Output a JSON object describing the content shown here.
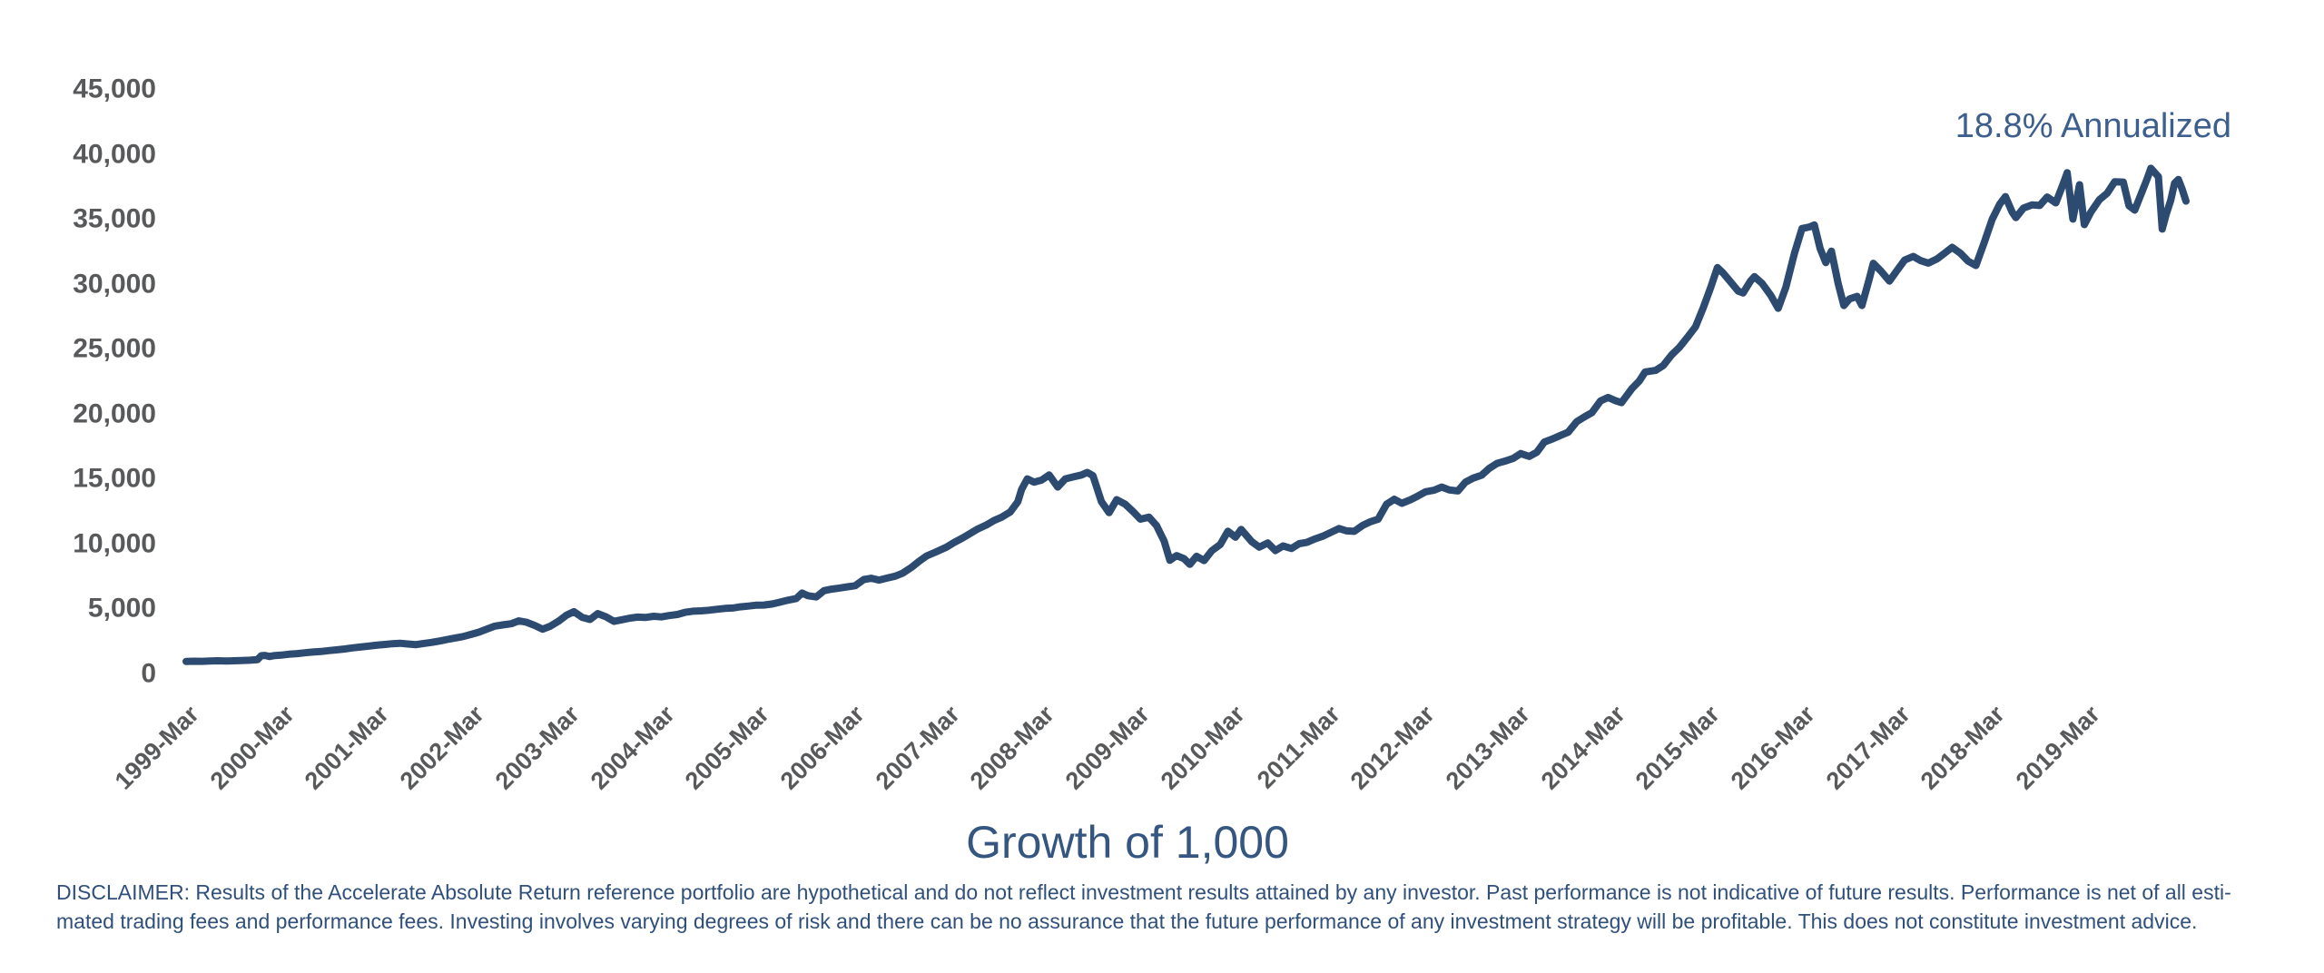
{
  "figure": {
    "title": "Growth of 1,000",
    "annotation": "18.8% Annualized",
    "disclaimer_lines": [
      "DISCLAIMER: Results of the Accelerate Absolute Return reference portfolio are hypothetical and do not reflect investment results attained by any investor. Past performance is not indicative of future results. Performance is net of all esti-",
      "mated trading fees and performance fees. Investing involves varying degrees of risk and there can be no assurance that the future performance of any investment strategy will be profitable. This does not constitute investment advice."
    ],
    "colors": {
      "line": "#2d4a70",
      "annotation_text": "#3d5f8d",
      "title_text": "#355680",
      "disclaimer_text": "#30507c",
      "axis_labels": "#58595b",
      "background": "#ffffff"
    }
  },
  "chart_data": {
    "type": "line",
    "title": "Growth of 1,000",
    "series_name": "Accelerate Absolute Return reference portfolio - growth of 1,000",
    "annotation": "18.8% Annualized",
    "grid": false,
    "legend": "none",
    "xlabel": "",
    "ylabel": "",
    "x_unit": "decimal_year",
    "ylim": [
      0,
      45000
    ],
    "xlim": [
      1999.25,
      2020.29
    ],
    "y_ticks": [
      {
        "label": "0",
        "v": 0
      },
      {
        "label": "5,000",
        "v": 5000
      },
      {
        "label": "10,000",
        "v": 10000
      },
      {
        "label": "15,000",
        "v": 15000
      },
      {
        "label": "20,000",
        "v": 20000
      },
      {
        "label": "25,000",
        "v": 25000
      },
      {
        "label": "30,000",
        "v": 30000
      },
      {
        "label": "35,000",
        "v": 35000
      },
      {
        "label": "40,000",
        "v": 40000
      },
      {
        "label": "45,000",
        "v": 45000
      }
    ],
    "x_ticks": [
      {
        "label": "1999-Mar",
        "t": 1999.25
      },
      {
        "label": "2000-Mar",
        "t": 2000.25
      },
      {
        "label": "2001-Mar",
        "t": 2001.25
      },
      {
        "label": "2002-Mar",
        "t": 2002.25
      },
      {
        "label": "2003-Mar",
        "t": 2003.25
      },
      {
        "label": "2004-Mar",
        "t": 2004.25
      },
      {
        "label": "2005-Mar",
        "t": 2005.25
      },
      {
        "label": "2006-Mar",
        "t": 2006.25
      },
      {
        "label": "2007-Mar",
        "t": 2007.25
      },
      {
        "label": "2008-Mar",
        "t": 2008.25
      },
      {
        "label": "2009-Mar",
        "t": 2009.25
      },
      {
        "label": "2010-Mar",
        "t": 2010.25
      },
      {
        "label": "2011-Mar",
        "t": 2011.25
      },
      {
        "label": "2012-Mar",
        "t": 2012.25
      },
      {
        "label": "2013-Mar",
        "t": 2013.25
      },
      {
        "label": "2014-Mar",
        "t": 2014.25
      },
      {
        "label": "2015-Mar",
        "t": 2015.25
      },
      {
        "label": "2016-Mar",
        "t": 2016.25
      },
      {
        "label": "2017-Mar",
        "t": 2017.25
      },
      {
        "label": "2018-Mar",
        "t": 2018.25
      },
      {
        "label": "2019-Mar",
        "t": 2019.25
      }
    ],
    "points": [
      [
        1999.25,
        1000
      ],
      [
        1999.33,
        1015
      ],
      [
        1999.42,
        1005
      ],
      [
        1999.5,
        1030
      ],
      [
        1999.58,
        1045
      ],
      [
        1999.67,
        1025
      ],
      [
        1999.75,
        1050
      ],
      [
        1999.83,
        1060
      ],
      [
        1999.92,
        1090
      ],
      [
        2000.0,
        1130
      ],
      [
        2000.04,
        1430
      ],
      [
        2000.08,
        1460
      ],
      [
        2000.13,
        1380
      ],
      [
        2000.17,
        1440
      ],
      [
        2000.25,
        1480
      ],
      [
        2000.33,
        1550
      ],
      [
        2000.42,
        1600
      ],
      [
        2000.5,
        1660
      ],
      [
        2000.58,
        1720
      ],
      [
        2000.67,
        1760
      ],
      [
        2000.75,
        1830
      ],
      [
        2000.83,
        1890
      ],
      [
        2000.92,
        1960
      ],
      [
        2001.0,
        2040
      ],
      [
        2001.08,
        2100
      ],
      [
        2001.17,
        2170
      ],
      [
        2001.25,
        2240
      ],
      [
        2001.33,
        2300
      ],
      [
        2001.42,
        2360
      ],
      [
        2001.5,
        2400
      ],
      [
        2001.58,
        2340
      ],
      [
        2001.67,
        2290
      ],
      [
        2001.75,
        2380
      ],
      [
        2001.83,
        2460
      ],
      [
        2001.92,
        2570
      ],
      [
        2002.0,
        2690
      ],
      [
        2002.08,
        2800
      ],
      [
        2002.17,
        2920
      ],
      [
        2002.25,
        3080
      ],
      [
        2002.33,
        3250
      ],
      [
        2002.42,
        3500
      ],
      [
        2002.5,
        3720
      ],
      [
        2002.58,
        3810
      ],
      [
        2002.67,
        3900
      ],
      [
        2002.75,
        4120
      ],
      [
        2002.83,
        4020
      ],
      [
        2002.92,
        3760
      ],
      [
        2003.0,
        3480
      ],
      [
        2003.08,
        3700
      ],
      [
        2003.17,
        4100
      ],
      [
        2003.25,
        4550
      ],
      [
        2003.33,
        4830
      ],
      [
        2003.42,
        4380
      ],
      [
        2003.5,
        4230
      ],
      [
        2003.58,
        4680
      ],
      [
        2003.67,
        4420
      ],
      [
        2003.75,
        4080
      ],
      [
        2003.83,
        4200
      ],
      [
        2003.92,
        4330
      ],
      [
        2004.0,
        4410
      ],
      [
        2004.08,
        4380
      ],
      [
        2004.17,
        4470
      ],
      [
        2004.25,
        4420
      ],
      [
        2004.33,
        4530
      ],
      [
        2004.42,
        4610
      ],
      [
        2004.5,
        4780
      ],
      [
        2004.58,
        4860
      ],
      [
        2004.67,
        4890
      ],
      [
        2004.75,
        4940
      ],
      [
        2004.83,
        5010
      ],
      [
        2004.92,
        5080
      ],
      [
        2005.0,
        5110
      ],
      [
        2005.08,
        5200
      ],
      [
        2005.17,
        5260
      ],
      [
        2005.25,
        5330
      ],
      [
        2005.33,
        5340
      ],
      [
        2005.42,
        5420
      ],
      [
        2005.5,
        5560
      ],
      [
        2005.58,
        5710
      ],
      [
        2005.67,
        5840
      ],
      [
        2005.73,
        6260
      ],
      [
        2005.79,
        6060
      ],
      [
        2005.88,
        5960
      ],
      [
        2005.96,
        6440
      ],
      [
        2006.04,
        6560
      ],
      [
        2006.13,
        6650
      ],
      [
        2006.21,
        6740
      ],
      [
        2006.29,
        6830
      ],
      [
        2006.38,
        7300
      ],
      [
        2006.46,
        7400
      ],
      [
        2006.54,
        7260
      ],
      [
        2006.63,
        7420
      ],
      [
        2006.71,
        7560
      ],
      [
        2006.79,
        7800
      ],
      [
        2006.88,
        8230
      ],
      [
        2006.96,
        8700
      ],
      [
        2007.04,
        9120
      ],
      [
        2007.13,
        9400
      ],
      [
        2007.25,
        9800
      ],
      [
        2007.33,
        10150
      ],
      [
        2007.42,
        10500
      ],
      [
        2007.5,
        10850
      ],
      [
        2007.58,
        11200
      ],
      [
        2007.67,
        11500
      ],
      [
        2007.75,
        11850
      ],
      [
        2007.83,
        12100
      ],
      [
        2007.92,
        12500
      ],
      [
        2008.0,
        13300
      ],
      [
        2008.04,
        14250
      ],
      [
        2008.1,
        15050
      ],
      [
        2008.17,
        14800
      ],
      [
        2008.25,
        14950
      ],
      [
        2008.33,
        15350
      ],
      [
        2008.42,
        14420
      ],
      [
        2008.5,
        15050
      ],
      [
        2008.58,
        15200
      ],
      [
        2008.67,
        15350
      ],
      [
        2008.73,
        15550
      ],
      [
        2008.79,
        15300
      ],
      [
        2008.88,
        13300
      ],
      [
        2008.96,
        12450
      ],
      [
        2009.04,
        13450
      ],
      [
        2009.13,
        13100
      ],
      [
        2009.21,
        12550
      ],
      [
        2009.29,
        11950
      ],
      [
        2009.38,
        12100
      ],
      [
        2009.46,
        11450
      ],
      [
        2009.54,
        10250
      ],
      [
        2009.6,
        8780
      ],
      [
        2009.67,
        9150
      ],
      [
        2009.75,
        8900
      ],
      [
        2009.81,
        8470
      ],
      [
        2009.88,
        9090
      ],
      [
        2009.96,
        8760
      ],
      [
        2010.04,
        9520
      ],
      [
        2010.13,
        10000
      ],
      [
        2010.21,
        11020
      ],
      [
        2010.29,
        10560
      ],
      [
        2010.35,
        11160
      ],
      [
        2010.46,
        10230
      ],
      [
        2010.54,
        9800
      ],
      [
        2010.63,
        10120
      ],
      [
        2010.71,
        9530
      ],
      [
        2010.79,
        9890
      ],
      [
        2010.88,
        9690
      ],
      [
        2010.96,
        10060
      ],
      [
        2011.04,
        10160
      ],
      [
        2011.13,
        10440
      ],
      [
        2011.21,
        10640
      ],
      [
        2011.29,
        10920
      ],
      [
        2011.38,
        11230
      ],
      [
        2011.46,
        11050
      ],
      [
        2011.54,
        11010
      ],
      [
        2011.63,
        11480
      ],
      [
        2011.71,
        11750
      ],
      [
        2011.79,
        11940
      ],
      [
        2011.88,
        13100
      ],
      [
        2011.96,
        13480
      ],
      [
        2012.04,
        13170
      ],
      [
        2012.13,
        13440
      ],
      [
        2012.21,
        13740
      ],
      [
        2012.29,
        14060
      ],
      [
        2012.38,
        14180
      ],
      [
        2012.46,
        14420
      ],
      [
        2012.54,
        14200
      ],
      [
        2012.63,
        14120
      ],
      [
        2012.71,
        14800
      ],
      [
        2012.79,
        15110
      ],
      [
        2012.88,
        15340
      ],
      [
        2012.96,
        15860
      ],
      [
        2013.04,
        16240
      ],
      [
        2013.13,
        16430
      ],
      [
        2013.21,
        16620
      ],
      [
        2013.29,
        17000
      ],
      [
        2013.38,
        16780
      ],
      [
        2013.46,
        17100
      ],
      [
        2013.54,
        17890
      ],
      [
        2013.63,
        18140
      ],
      [
        2013.71,
        18400
      ],
      [
        2013.79,
        18640
      ],
      [
        2013.88,
        19450
      ],
      [
        2013.96,
        19820
      ],
      [
        2014.04,
        20150
      ],
      [
        2014.13,
        21050
      ],
      [
        2014.21,
        21320
      ],
      [
        2014.29,
        21060
      ],
      [
        2014.35,
        20920
      ],
      [
        2014.46,
        22000
      ],
      [
        2014.54,
        22600
      ],
      [
        2014.6,
        23280
      ],
      [
        2014.71,
        23400
      ],
      [
        2014.79,
        23780
      ],
      [
        2014.88,
        24600
      ],
      [
        2014.96,
        25170
      ],
      [
        2015.04,
        25900
      ],
      [
        2015.13,
        26760
      ],
      [
        2015.21,
        28200
      ],
      [
        2015.29,
        29800
      ],
      [
        2015.36,
        31320
      ],
      [
        2015.42,
        30900
      ],
      [
        2015.5,
        30200
      ],
      [
        2015.58,
        29500
      ],
      [
        2015.63,
        29360
      ],
      [
        2015.71,
        30300
      ],
      [
        2015.75,
        30620
      ],
      [
        2015.83,
        30100
      ],
      [
        2015.92,
        29200
      ],
      [
        2016.0,
        28180
      ],
      [
        2016.08,
        29800
      ],
      [
        2016.17,
        32400
      ],
      [
        2016.25,
        34320
      ],
      [
        2016.33,
        34450
      ],
      [
        2016.38,
        34600
      ],
      [
        2016.44,
        32800
      ],
      [
        2016.5,
        31700
      ],
      [
        2016.56,
        32580
      ],
      [
        2016.63,
        30100
      ],
      [
        2016.69,
        28400
      ],
      [
        2016.75,
        28900
      ],
      [
        2016.83,
        29100
      ],
      [
        2016.88,
        28400
      ],
      [
        2016.96,
        30500
      ],
      [
        2017.0,
        31650
      ],
      [
        2017.08,
        31050
      ],
      [
        2017.17,
        30280
      ],
      [
        2017.25,
        31100
      ],
      [
        2017.33,
        31900
      ],
      [
        2017.42,
        32180
      ],
      [
        2017.5,
        31850
      ],
      [
        2017.58,
        31660
      ],
      [
        2017.67,
        31980
      ],
      [
        2017.75,
        32420
      ],
      [
        2017.83,
        32880
      ],
      [
        2017.92,
        32400
      ],
      [
        2018.0,
        31800
      ],
      [
        2018.08,
        31480
      ],
      [
        2018.17,
        33300
      ],
      [
        2018.25,
        35020
      ],
      [
        2018.33,
        36200
      ],
      [
        2018.39,
        36780
      ],
      [
        2018.46,
        35600
      ],
      [
        2018.5,
        35170
      ],
      [
        2018.58,
        35900
      ],
      [
        2018.67,
        36150
      ],
      [
        2018.75,
        36100
      ],
      [
        2018.83,
        36750
      ],
      [
        2018.92,
        36300
      ],
      [
        2019.0,
        37800
      ],
      [
        2019.04,
        38620
      ],
      [
        2019.1,
        35050
      ],
      [
        2019.17,
        37700
      ],
      [
        2019.22,
        34620
      ],
      [
        2019.29,
        35600
      ],
      [
        2019.38,
        36550
      ],
      [
        2019.46,
        37040
      ],
      [
        2019.54,
        37930
      ],
      [
        2019.63,
        37900
      ],
      [
        2019.69,
        36080
      ],
      [
        2019.75,
        35740
      ],
      [
        2019.83,
        37200
      ],
      [
        2019.88,
        38140
      ],
      [
        2019.92,
        38960
      ],
      [
        2020.0,
        38310
      ],
      [
        2020.04,
        34280
      ],
      [
        2020.08,
        35380
      ],
      [
        2020.13,
        36500
      ],
      [
        2020.17,
        37820
      ],
      [
        2020.21,
        38100
      ],
      [
        2020.25,
        37340
      ],
      [
        2020.29,
        36430
      ]
    ]
  }
}
